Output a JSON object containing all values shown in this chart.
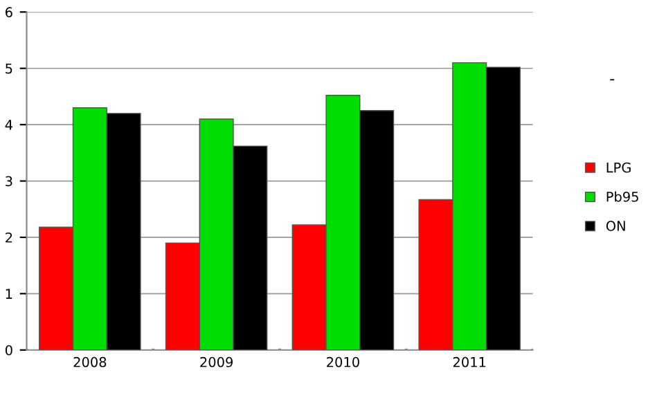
{
  "chart_data": {
    "type": "bar",
    "categories": [
      "2008",
      "2009",
      "2010",
      "2011"
    ],
    "series": [
      {
        "name": "LPG",
        "color": "#ff0000",
        "values": [
          2.18,
          1.9,
          2.22,
          2.67
        ]
      },
      {
        "name": "Pb95",
        "color": "#00dd00",
        "values": [
          4.3,
          4.1,
          4.52,
          5.1
        ]
      },
      {
        "name": "ON",
        "color": "#000000",
        "values": [
          4.2,
          3.62,
          4.25,
          5.02
        ]
      }
    ],
    "ylim": [
      0,
      6
    ],
    "yticks": [
      0,
      1,
      2,
      3,
      4,
      5,
      6
    ],
    "grid": "y",
    "legend": "right",
    "annotations": [
      "-"
    ]
  }
}
